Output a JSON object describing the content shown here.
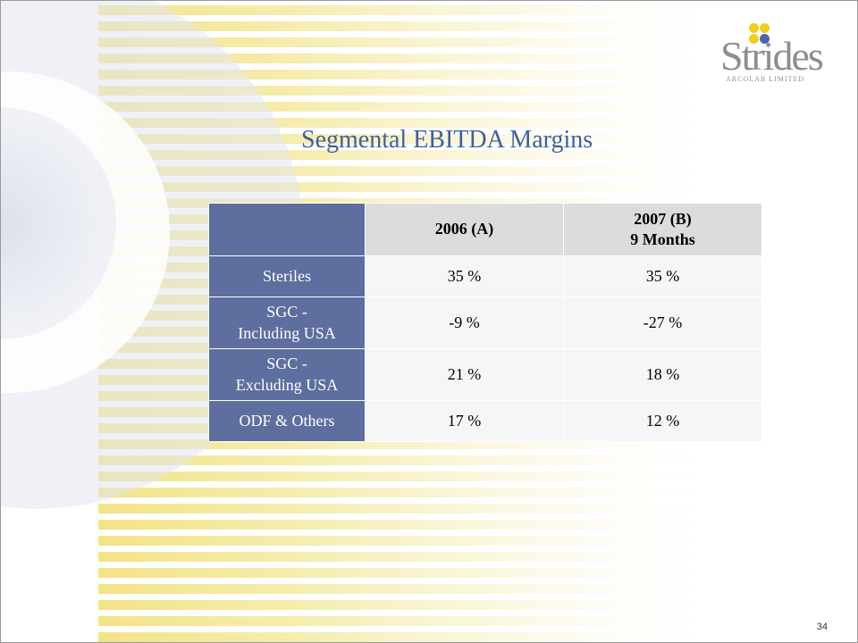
{
  "logo": {
    "word": "Strides",
    "subtitle": "ARCOLAB LIMITED"
  },
  "title": "Segmental EBITDA Margins",
  "table": {
    "columns": [
      {
        "lines": [
          "2006 (A)"
        ]
      },
      {
        "lines": [
          "2007 (B)",
          "9 Months"
        ]
      }
    ],
    "rows": [
      {
        "label_lines": [
          "Steriles"
        ],
        "values": [
          "35 %",
          "35 %"
        ]
      },
      {
        "label_lines": [
          "SGC -",
          "Including USA"
        ],
        "values": [
          "-9 %",
          "-27 %"
        ]
      },
      {
        "label_lines": [
          "SGC -",
          "Excluding USA"
        ],
        "values": [
          "21 %",
          "18 %"
        ]
      },
      {
        "label_lines": [
          "ODF & Others"
        ],
        "values": [
          "17 %",
          "12 %"
        ]
      }
    ]
  },
  "page_number": "34",
  "colors": {
    "title": "#3f5f9f",
    "row_header": "#5e6e9e",
    "column_header": "#dcdcdc",
    "stripe": "#f3e89a",
    "logo_yellow": "#f2cc1e",
    "logo_blue": "#4a67b4"
  }
}
